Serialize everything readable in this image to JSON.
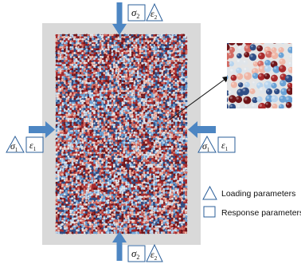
{
  "colors": {
    "frame": "#d9d9d9",
    "arrow": "#4d86c3",
    "marker_stroke": "#2b5f9a",
    "zoom_bg": "#e5e5e5",
    "particle_palette": [
      "#2f4e86",
      "#6aa2d6",
      "#b7d4ee",
      "#e0e5ea",
      "#d36b63",
      "#a92a2c",
      "#6f1519",
      "#efb6a6"
    ]
  },
  "icons": {
    "loading": "triangle-icon",
    "response": "square-icon"
  },
  "top_label": {
    "sigma": "σ",
    "sigma_sub": "2",
    "epsilon": "ε",
    "epsilon_sub": "2"
  },
  "bottom_label": {
    "sigma": "σ",
    "sigma_sub": "2",
    "epsilon": "ε",
    "epsilon_sub": "2"
  },
  "left_label": {
    "sigma": "σ",
    "sigma_sub": "1",
    "epsilon": "ε",
    "epsilon_sub": "1"
  },
  "right_label": {
    "sigma": "σ",
    "sigma_sub": "1",
    "epsilon": "ε",
    "epsilon_sub": "1"
  },
  "legend": {
    "loading": "Loading parameters",
    "response": "Response parameters"
  }
}
